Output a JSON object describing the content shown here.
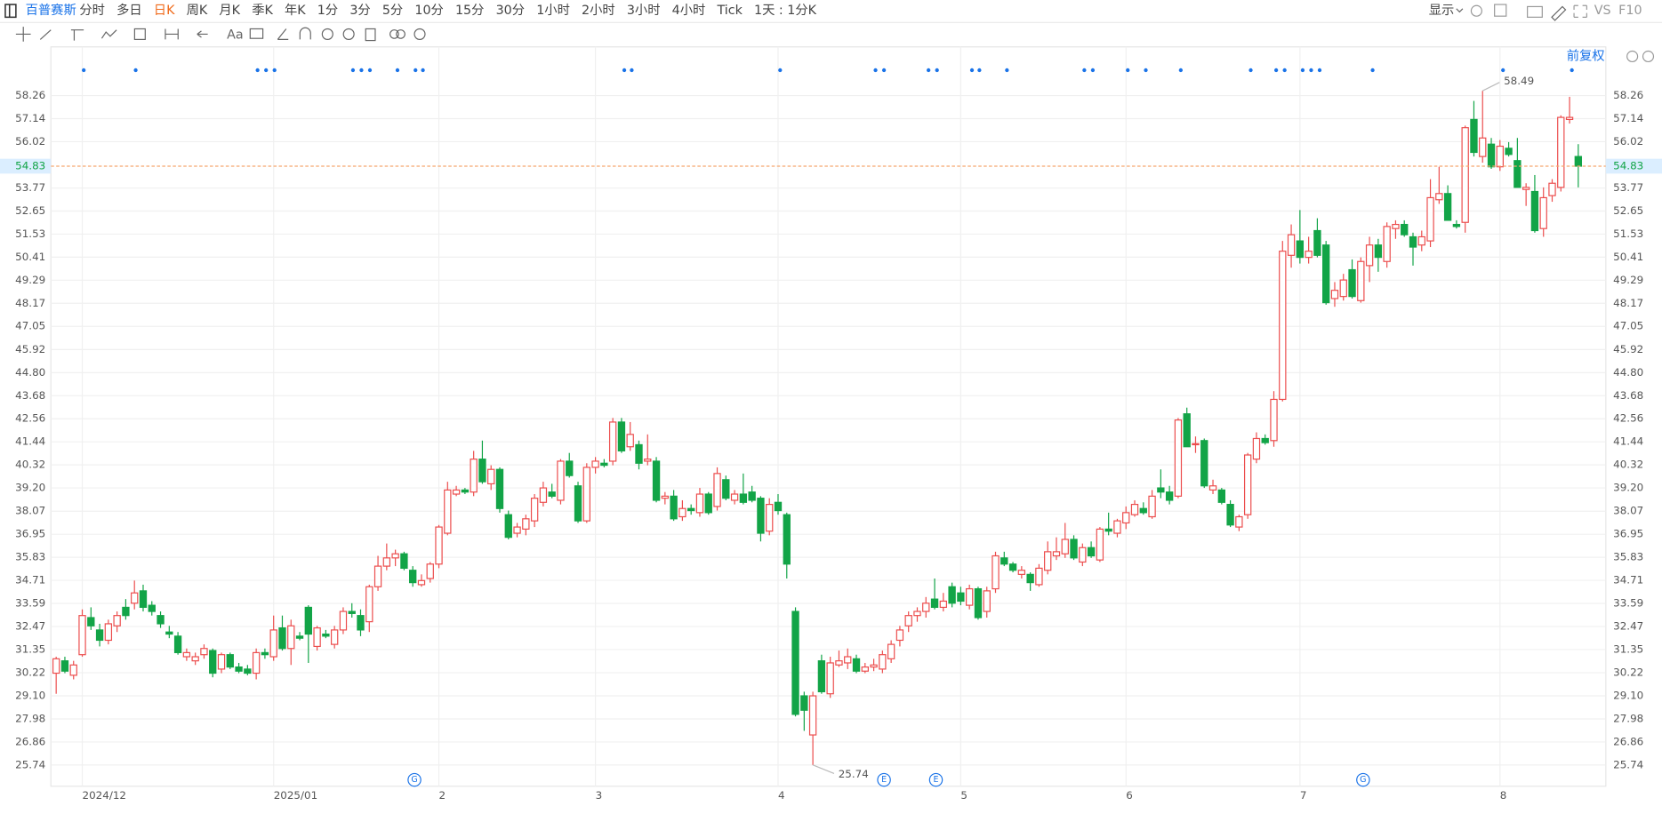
{
  "toolbar": {
    "symbol": "百普赛斯",
    "periods": [
      "分时",
      "多日",
      "日K",
      "周K",
      "月K",
      "季K",
      "年K",
      "1分",
      "3分",
      "5分",
      "10分",
      "15分",
      "30分",
      "1小时",
      "2小时",
      "3小时",
      "4小时",
      "Tick",
      "1天 : 1分K"
    ],
    "active": 2,
    "display": "显示",
    "vs": "VS",
    "f10": "F10",
    "text_tool": "Aa",
    "adjust": "前复权"
  },
  "event_markers": [
    "G",
    "E",
    "E",
    "G"
  ],
  "chart_data": {
    "type": "candlestick",
    "up_color": "#ec4d4d",
    "down_color": "#12a447",
    "ylim": [
      24.71,
      59.7
    ],
    "yticks": [
      58.26,
      57.14,
      56.02,
      53.77,
      52.65,
      51.53,
      50.41,
      49.29,
      48.17,
      47.05,
      45.92,
      {
        "value": 44.8,
        "label": "44.80"
      },
      43.68,
      42.56,
      41.44,
      40.32,
      {
        "value": 39.2,
        "label": "39.20"
      },
      38.07,
      36.95,
      35.83,
      34.71,
      33.59,
      32.47,
      31.35,
      30.22,
      {
        "value": 29.1,
        "label": "29.10"
      },
      27.98,
      26.86,
      25.74
    ],
    "xticks": [
      {
        "value": 3,
        "label": "2024/12"
      },
      {
        "value": 25,
        "label": "2025/01"
      },
      {
        "value": 44,
        "label": "2"
      },
      {
        "value": 62,
        "label": "3"
      },
      {
        "value": 83,
        "label": "4"
      },
      {
        "value": 104,
        "label": "5"
      },
      {
        "value": 123,
        "label": "6"
      },
      {
        "value": 143,
        "label": "7"
      },
      {
        "value": 166,
        "label": "8"
      }
    ],
    "grid": true,
    "ohlc": [
      [
        30.2,
        31.0,
        29.2,
        30.9
      ],
      [
        30.8,
        31.0,
        30.2,
        30.3
      ],
      [
        30.1,
        30.8,
        29.9,
        30.6
      ],
      [
        31.1,
        33.3,
        31.0,
        33.0
      ],
      [
        32.9,
        33.4,
        32.3,
        32.5
      ],
      [
        32.3,
        32.6,
        31.5,
        31.8
      ],
      [
        31.8,
        32.8,
        31.6,
        32.6
      ],
      [
        32.5,
        33.2,
        32.2,
        33.0
      ],
      [
        33.4,
        33.8,
        32.8,
        33.0
      ],
      [
        33.6,
        34.7,
        33.3,
        34.1
      ],
      [
        34.2,
        34.5,
        33.2,
        33.4
      ],
      [
        33.5,
        33.7,
        33.0,
        33.2
      ],
      [
        33.0,
        33.2,
        32.4,
        32.6
      ],
      [
        32.2,
        32.5,
        31.9,
        32.1
      ],
      [
        32.0,
        32.2,
        31.1,
        31.2
      ],
      [
        31.0,
        31.4,
        30.8,
        31.2
      ],
      [
        30.8,
        31.2,
        30.6,
        31.0
      ],
      [
        31.1,
        31.6,
        30.9,
        31.4
      ],
      [
        31.3,
        31.4,
        30.0,
        30.2
      ],
      [
        30.4,
        31.2,
        30.2,
        31.1
      ],
      [
        31.1,
        31.2,
        30.4,
        30.5
      ],
      [
        30.5,
        30.7,
        30.2,
        30.3
      ],
      [
        30.4,
        30.6,
        30.1,
        30.2
      ],
      [
        30.2,
        31.4,
        29.9,
        31.2
      ],
      [
        31.2,
        31.4,
        30.9,
        31.1
      ],
      [
        31.0,
        33.0,
        30.8,
        32.3
      ],
      [
        32.4,
        33.0,
        31.3,
        31.4
      ],
      [
        31.4,
        32.8,
        30.6,
        32.5
      ],
      [
        32.0,
        32.2,
        31.8,
        31.9
      ],
      [
        33.4,
        33.5,
        30.7,
        32.1
      ],
      [
        31.5,
        32.5,
        31.3,
        32.4
      ],
      [
        32.1,
        32.3,
        31.9,
        32.0
      ],
      [
        31.6,
        32.5,
        31.4,
        32.3
      ],
      [
        32.3,
        33.4,
        32.1,
        33.2
      ],
      [
        33.2,
        33.6,
        32.9,
        33.1
      ],
      [
        33.0,
        33.3,
        32.0,
        32.3
      ],
      [
        32.7,
        34.5,
        32.2,
        34.4
      ],
      [
        34.4,
        35.9,
        34.2,
        35.4
      ],
      [
        35.4,
        36.5,
        35.2,
        35.8
      ],
      [
        35.8,
        36.2,
        35.4,
        36.0
      ],
      [
        36.0,
        36.1,
        35.2,
        35.3
      ],
      [
        35.2,
        35.4,
        34.4,
        34.6
      ],
      [
        34.5,
        35.0,
        34.4,
        34.7
      ],
      [
        34.8,
        35.6,
        34.6,
        35.5
      ],
      [
        35.5,
        37.4,
        35.3,
        37.3
      ],
      [
        37.0,
        39.5,
        36.9,
        39.1
      ],
      [
        38.9,
        39.3,
        38.8,
        39.1
      ],
      [
        39.1,
        39.2,
        38.9,
        39.0
      ],
      [
        39.0,
        41.0,
        38.8,
        40.6
      ],
      [
        40.6,
        41.5,
        39.4,
        39.5
      ],
      [
        39.4,
        40.3,
        39.1,
        40.1
      ],
      [
        40.1,
        40.2,
        38.0,
        38.2
      ],
      [
        37.9,
        38.1,
        36.7,
        36.8
      ],
      [
        37.0,
        37.5,
        36.8,
        37.3
      ],
      [
        37.2,
        37.9,
        36.9,
        37.7
      ],
      [
        37.6,
        38.9,
        37.3,
        38.7
      ],
      [
        38.5,
        39.5,
        38.3,
        39.2
      ],
      [
        39.0,
        39.4,
        38.7,
        38.8
      ],
      [
        38.6,
        40.6,
        38.4,
        40.5
      ],
      [
        40.5,
        40.9,
        39.7,
        39.8
      ],
      [
        39.3,
        39.5,
        37.5,
        37.6
      ],
      [
        37.6,
        40.4,
        37.5,
        40.2
      ],
      [
        40.2,
        40.7,
        39.9,
        40.5
      ],
      [
        40.4,
        40.6,
        40.2,
        40.3
      ],
      [
        40.5,
        42.6,
        40.3,
        42.4
      ],
      [
        42.4,
        42.6,
        40.9,
        41.0
      ],
      [
        41.2,
        42.4,
        41.0,
        41.8
      ],
      [
        41.3,
        41.5,
        40.1,
        40.4
      ],
      [
        40.5,
        41.8,
        40.3,
        40.6
      ],
      [
        40.5,
        40.7,
        38.5,
        38.6
      ],
      [
        38.7,
        39.0,
        38.4,
        38.8
      ],
      [
        38.8,
        39.1,
        37.6,
        37.7
      ],
      [
        37.8,
        38.6,
        37.6,
        38.2
      ],
      [
        38.2,
        38.4,
        37.9,
        38.1
      ],
      [
        38.0,
        39.2,
        37.8,
        38.9
      ],
      [
        38.9,
        39.0,
        37.9,
        38.0
      ],
      [
        38.3,
        40.2,
        38.1,
        39.9
      ],
      [
        39.6,
        39.8,
        38.6,
        38.7
      ],
      [
        38.6,
        39.1,
        38.4,
        38.9
      ],
      [
        38.9,
        39.9,
        38.4,
        38.5
      ],
      [
        39.0,
        39.3,
        38.5,
        38.6
      ],
      [
        38.7,
        38.8,
        36.6,
        37.0
      ],
      [
        37.1,
        38.7,
        36.9,
        38.4
      ],
      [
        38.5,
        38.9,
        37.9,
        38.1
      ],
      [
        37.9,
        38.0,
        34.8,
        35.5
      ],
      [
        33.2,
        33.4,
        28.1,
        28.2
      ],
      [
        29.1,
        29.3,
        27.4,
        28.4
      ],
      [
        27.2,
        29.3,
        25.74,
        29.1
      ],
      [
        30.8,
        31.1,
        29.2,
        29.3
      ],
      [
        29.2,
        31.0,
        29.0,
        30.7
      ],
      [
        30.6,
        31.3,
        30.5,
        30.8
      ],
      [
        30.7,
        31.4,
        30.4,
        31.0
      ],
      [
        30.9,
        31.1,
        30.2,
        30.3
      ],
      [
        30.3,
        30.7,
        30.2,
        30.5
      ],
      [
        30.5,
        30.9,
        30.3,
        30.6
      ],
      [
        30.4,
        31.3,
        30.2,
        31.1
      ],
      [
        30.9,
        31.8,
        30.7,
        31.6
      ],
      [
        31.8,
        32.5,
        31.5,
        32.3
      ],
      [
        32.5,
        33.2,
        32.2,
        33.0
      ],
      [
        33.0,
        33.4,
        32.7,
        33.2
      ],
      [
        33.2,
        33.9,
        32.9,
        33.6
      ],
      [
        33.8,
        34.8,
        33.3,
        33.4
      ],
      [
        33.4,
        34.1,
        33.2,
        33.7
      ],
      [
        34.4,
        34.6,
        33.4,
        33.6
      ],
      [
        34.1,
        34.4,
        33.5,
        33.7
      ],
      [
        33.5,
        34.5,
        33.3,
        34.3
      ],
      [
        34.3,
        34.4,
        32.8,
        32.9
      ],
      [
        33.2,
        34.4,
        32.9,
        34.2
      ],
      [
        34.3,
        36.1,
        34.1,
        35.9
      ],
      [
        35.8,
        36.1,
        35.4,
        35.5
      ],
      [
        35.5,
        35.6,
        35.1,
        35.2
      ],
      [
        35.0,
        35.4,
        34.8,
        35.2
      ],
      [
        35.0,
        35.1,
        34.2,
        34.6
      ],
      [
        34.5,
        35.5,
        34.4,
        35.3
      ],
      [
        35.2,
        36.6,
        35.0,
        36.1
      ],
      [
        35.9,
        36.8,
        35.7,
        36.1
      ],
      [
        36.0,
        37.5,
        35.8,
        36.7
      ],
      [
        36.7,
        36.9,
        35.7,
        35.8
      ],
      [
        35.6,
        36.5,
        35.4,
        36.3
      ],
      [
        36.3,
        36.6,
        35.8,
        35.9
      ],
      [
        35.7,
        37.3,
        35.6,
        37.2
      ],
      [
        37.2,
        38.0,
        36.9,
        37.1
      ],
      [
        37.0,
        37.7,
        36.8,
        37.6
      ],
      [
        37.5,
        38.3,
        37.2,
        38.0
      ],
      [
        37.9,
        38.6,
        37.8,
        38.4
      ],
      [
        38.2,
        38.5,
        37.9,
        38.0
      ],
      [
        37.8,
        39.1,
        37.7,
        38.8
      ],
      [
        39.2,
        40.1,
        38.7,
        39.0
      ],
      [
        39.0,
        39.3,
        38.4,
        38.6
      ],
      [
        38.8,
        42.6,
        38.7,
        42.5
      ],
      [
        42.8,
        43.1,
        41.2,
        41.2
      ],
      [
        41.3,
        41.7,
        40.9,
        41.35
      ],
      [
        41.5,
        41.6,
        39.2,
        39.3
      ],
      [
        39.1,
        39.6,
        38.9,
        39.3
      ],
      [
        39.1,
        39.2,
        38.4,
        38.5
      ],
      [
        38.4,
        38.6,
        37.3,
        37.4
      ],
      [
        37.3,
        37.9,
        37.1,
        37.8
      ],
      [
        37.9,
        40.9,
        37.7,
        40.8
      ],
      [
        40.6,
        41.9,
        40.4,
        41.6
      ],
      [
        41.6,
        41.8,
        41.3,
        41.4
      ],
      [
        41.5,
        43.9,
        41.2,
        43.5
      ],
      [
        43.5,
        51.2,
        43.4,
        50.7
      ],
      [
        50.5,
        52.0,
        49.9,
        51.5
      ],
      [
        51.2,
        52.7,
        50.1,
        50.4
      ],
      [
        50.4,
        51.4,
        50.1,
        50.7
      ],
      [
        51.7,
        52.3,
        50.4,
        50.5
      ],
      [
        51.0,
        51.2,
        48.1,
        48.2
      ],
      [
        48.4,
        49.2,
        48.0,
        48.8
      ],
      [
        48.5,
        49.6,
        48.3,
        49.3
      ],
      [
        49.8,
        50.3,
        48.4,
        48.5
      ],
      [
        48.3,
        50.4,
        48.2,
        50.2
      ],
      [
        50.0,
        51.4,
        49.2,
        51.0
      ],
      [
        51.0,
        51.3,
        49.7,
        50.4
      ],
      [
        50.2,
        52.1,
        49.9,
        51.9
      ],
      [
        51.8,
        52.2,
        51.3,
        52.0
      ],
      [
        52.0,
        52.2,
        51.4,
        51.5
      ],
      [
        51.4,
        51.6,
        50.0,
        50.9
      ],
      [
        51.0,
        51.7,
        50.7,
        51.4
      ],
      [
        51.2,
        54.2,
        50.9,
        53.3
      ],
      [
        53.2,
        54.8,
        53.0,
        53.5
      ],
      [
        53.5,
        53.9,
        52.2,
        52.2
      ],
      [
        52.0,
        52.2,
        51.8,
        51.9
      ],
      [
        52.1,
        56.8,
        51.6,
        56.7
      ],
      [
        57.1,
        58.0,
        55.3,
        55.5
      ],
      [
        55.3,
        58.49,
        55.0,
        56.2
      ],
      [
        55.9,
        56.2,
        54.7,
        54.8
      ],
      [
        54.8,
        56.1,
        54.6,
        55.8
      ],
      [
        55.7,
        56.0,
        55.3,
        55.4
      ],
      [
        55.1,
        56.2,
        53.8,
        53.8
      ],
      [
        53.7,
        54.0,
        52.9,
        53.8
      ],
      [
        53.6,
        54.4,
        51.6,
        51.7
      ],
      [
        51.8,
        53.8,
        51.4,
        53.3
      ],
      [
        53.4,
        54.2,
        53.1,
        54.0
      ],
      [
        53.8,
        57.3,
        53.6,
        57.2
      ],
      [
        57.1,
        58.2,
        56.9,
        57.2
      ],
      [
        55.3,
        55.9,
        53.8,
        54.83
      ]
    ],
    "high_index": 164,
    "low_index": 87
  }
}
